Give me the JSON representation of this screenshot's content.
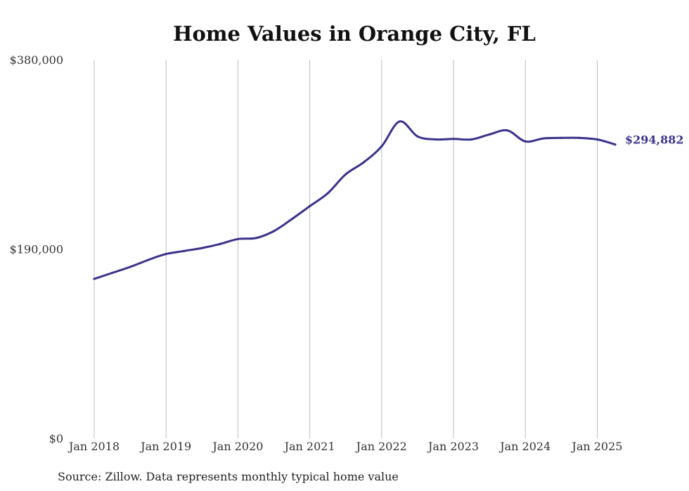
{
  "chart_data": {
    "type": "line",
    "title": "Home Values in Orange City, FL",
    "xlabel": "",
    "ylabel": "",
    "ylim": [
      0,
      380000
    ],
    "yticks": [
      0,
      190000,
      380000
    ],
    "ytick_labels": [
      "$0",
      "$190,000",
      "$380,000"
    ],
    "x_range": [
      "2018-01",
      "2025-04"
    ],
    "xticks": [
      "2018-01",
      "2019-01",
      "2020-01",
      "2021-01",
      "2022-01",
      "2023-01",
      "2024-01",
      "2025-01"
    ],
    "xtick_labels": [
      "Jan 2018",
      "Jan 2019",
      "Jan 2020",
      "Jan 2021",
      "Jan 2022",
      "Jan 2023",
      "Jan 2024",
      "Jan 2025"
    ],
    "grid": "vertical",
    "line_color": "#3b3289",
    "series": [
      {
        "x": [
          "2018-01",
          "2018-04",
          "2018-07",
          "2018-10",
          "2019-01",
          "2019-04",
          "2019-07",
          "2019-10",
          "2020-01",
          "2020-04",
          "2020-07",
          "2020-10",
          "2021-01",
          "2021-04",
          "2021-07",
          "2021-10",
          "2022-01",
          "2022-04",
          "2022-07",
          "2022-10",
          "2023-01",
          "2023-04",
          "2023-07",
          "2023-10",
          "2024-01",
          "2024-04",
          "2024-07",
          "2024-10",
          "2025-01",
          "2025-04"
        ],
        "values": [
          160000,
          166000,
          172000,
          179000,
          185000,
          188000,
          191000,
          195000,
          200000,
          201000,
          208000,
          220000,
          233000,
          246000,
          265000,
          277000,
          293000,
          318000,
          303000,
          300000,
          300500,
          300000,
          305000,
          309000,
          298000,
          301000,
          301500,
          301500,
          300000,
          294882
        ]
      }
    ],
    "end_label": "$294,882",
    "source": "Source: Zillow. Data represents monthly typical home value"
  }
}
